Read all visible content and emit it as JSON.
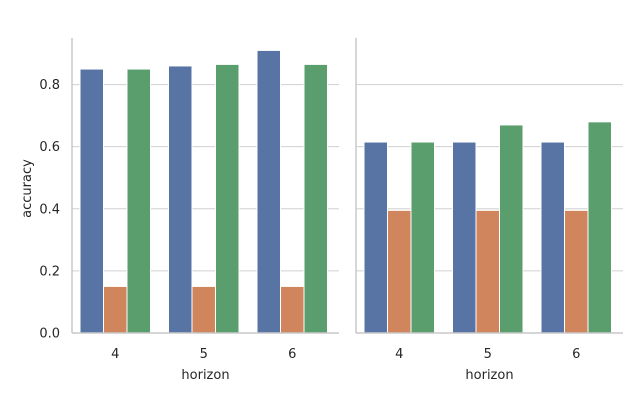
{
  "chart_data": [
    {
      "type": "bar",
      "categories": [
        "4",
        "5",
        "6"
      ],
      "series": [
        {
          "values": [
            0.85,
            0.86,
            0.91
          ],
          "color": "#5874a5"
        },
        {
          "values": [
            0.15,
            0.15,
            0.15
          ],
          "color": "#d0855c"
        },
        {
          "values": [
            0.85,
            0.865,
            0.865
          ],
          "color": "#5a9e6e"
        }
      ],
      "xlabel": "horizon",
      "ylabel": "accuracy",
      "ylim": [
        0,
        0.95
      ],
      "yticks": [
        "0.0",
        "0.2",
        "0.4",
        "0.6",
        "0.8"
      ],
      "grid": true
    },
    {
      "type": "bar",
      "categories": [
        "4",
        "5",
        "6"
      ],
      "series": [
        {
          "values": [
            0.615,
            0.615,
            0.615
          ],
          "color": "#5874a5"
        },
        {
          "values": [
            0.395,
            0.395,
            0.395
          ],
          "color": "#d0855c"
        },
        {
          "values": [
            0.615,
            0.67,
            0.68
          ],
          "color": "#5a9e6e"
        }
      ],
      "xlabel": "horizon",
      "ylabel": "",
      "ylim": [
        0,
        0.95
      ],
      "yticks": [],
      "grid": true
    }
  ]
}
